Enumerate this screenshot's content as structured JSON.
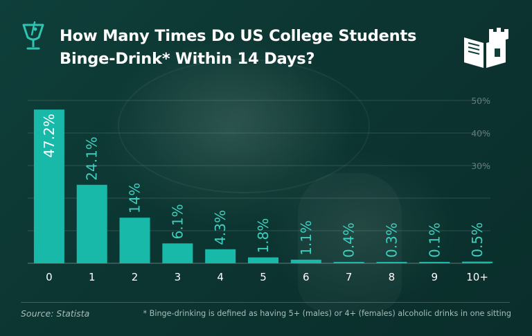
{
  "title_lines": [
    "How Many Times Do US College Students",
    "Binge-Drink* Within 14 Days?"
  ],
  "icons": {
    "left": "drink-glass-icon",
    "right": "book-castle-logo-icon"
  },
  "colors": {
    "bar": "#18b9a9",
    "label": "#3fcfbe",
    "title": "#ffffff",
    "background": "#0d3a36"
  },
  "chart_data": {
    "type": "bar",
    "categories": [
      "0",
      "1",
      "2",
      "3",
      "4",
      "5",
      "6",
      "7",
      "8",
      "9",
      "10+"
    ],
    "values": [
      47.2,
      24.1,
      14,
      6.1,
      4.3,
      1.8,
      1.1,
      0.4,
      0.3,
      0.1,
      0.5
    ],
    "value_labels": [
      "47.2%",
      "24.1%",
      "14%",
      "6.1%",
      "4.3%",
      "1.8%",
      "1.1%",
      "0.4%",
      "0.3%",
      "0.1%",
      "0.5%"
    ],
    "ylim": [
      0,
      50
    ],
    "yticks": [
      0,
      10,
      20,
      30,
      40,
      50
    ],
    "ytick_labels": [
      "",
      "",
      "",
      "30%",
      "40%",
      "50%"
    ],
    "grid": true
  },
  "footer": {
    "source": "Source: Statista",
    "note": "* Binge-drinking is defined as having 5+ (males) or 4+ (females) alcoholic drinks in one sitting"
  }
}
